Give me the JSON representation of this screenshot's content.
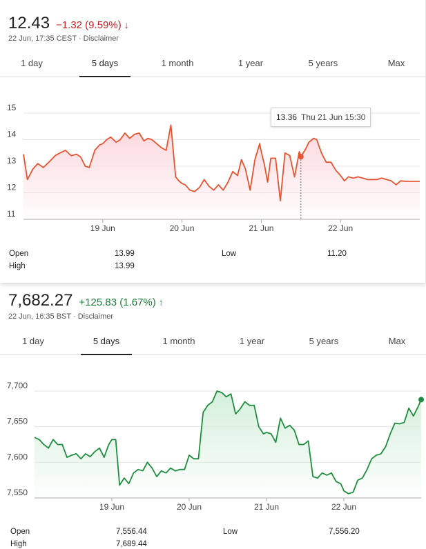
{
  "quote1": {
    "price": "12.43",
    "change": "−1.32 (9.59%)",
    "change_direction": "down",
    "timestamp": "22 Jun, 17:35 CEST · Disclaimer",
    "tabs": [
      "1 day",
      "5 days",
      "1 month",
      "1 year",
      "5 years",
      "Max"
    ],
    "active_tab": "5 days",
    "tooltip": {
      "value": "13.36",
      "time": "Thu 21 Jun 15:30"
    },
    "stats": {
      "open_label": "Open",
      "open_value": "13.99",
      "high_label": "High",
      "high_value": "13.99",
      "low_label": "Low",
      "low_value": "11.20"
    },
    "colors": {
      "line": "#e8532f",
      "fill": "#fbd7dc",
      "change": "#c5221f"
    }
  },
  "quote2": {
    "price": "7,682.27",
    "change": "+125.83 (1.67%)",
    "change_direction": "up",
    "timestamp": "22 Jun, 16:35 BST · Disclaimer",
    "tabs": [
      "1 day",
      "5 days",
      "1 month",
      "1 year",
      "5 years",
      "Max"
    ],
    "active_tab": "5 days",
    "stats": {
      "open_label": "Open",
      "open_value": "7,556.44",
      "high_label": "High",
      "high_value": "7,689.44",
      "low_label": "Low",
      "low_value": "7,556.20"
    },
    "colors": {
      "line": "#1e8e3e",
      "fill": "#d5efdc",
      "change": "#188038"
    }
  },
  "chart_data": [
    {
      "type": "line",
      "title": "",
      "x_tick_labels": [
        "19 Jun",
        "20 Jun",
        "21 Jun",
        "22 Jun"
      ],
      "y_tick_labels": [
        "11",
        "12",
        "13",
        "14",
        "15"
      ],
      "ylim": [
        11,
        15
      ],
      "xlim": [
        18.0,
        23.0
      ],
      "grid": true,
      "series": [
        {
          "x": [
            18.0,
            18.05,
            18.12,
            18.18,
            18.25,
            18.32,
            18.4,
            18.46,
            18.53,
            18.6,
            18.67,
            18.72,
            18.78,
            18.83,
            18.9,
            18.96,
            19.0,
            19.05,
            19.1,
            19.17,
            19.22,
            19.28,
            19.34,
            19.4,
            19.46,
            19.52,
            19.57,
            19.62,
            19.68,
            19.74,
            19.8,
            19.86,
            19.92,
            19.96,
            20.0,
            20.04,
            20.1,
            20.16,
            20.22,
            20.28,
            20.34,
            20.4,
            20.46,
            20.52,
            20.58,
            20.64,
            20.7,
            20.75,
            20.8,
            20.86,
            20.92,
            20.98,
            21.0,
            21.04,
            21.08,
            21.12,
            21.18,
            21.24,
            21.3,
            21.36,
            21.42,
            21.48,
            21.5,
            21.56,
            21.6,
            21.64,
            21.66,
            21.7,
            21.76,
            21.82,
            21.88,
            21.94,
            22.0,
            22.05,
            22.1,
            22.16,
            22.22,
            22.28,
            22.34,
            22.4,
            22.46,
            22.52,
            22.58,
            22.64,
            22.7,
            22.76,
            22.82,
            22.88,
            22.94,
            23.0
          ],
          "y": [
            13.45,
            12.5,
            12.9,
            13.1,
            12.95,
            13.15,
            13.4,
            13.5,
            13.6,
            13.4,
            13.45,
            13.35,
            13.0,
            12.95,
            13.6,
            13.8,
            13.85,
            14.0,
            14.1,
            13.9,
            14.0,
            14.25,
            14.05,
            14.2,
            14.25,
            13.95,
            14.05,
            14.0,
            13.85,
            13.7,
            13.6,
            14.55,
            12.6,
            12.45,
            12.35,
            12.3,
            12.1,
            12.05,
            12.2,
            12.5,
            12.25,
            12.1,
            12.3,
            12.1,
            12.4,
            12.8,
            12.65,
            13.25,
            12.9,
            12.1,
            13.25,
            13.85,
            13.55,
            13.05,
            12.4,
            13.3,
            13.3,
            11.7,
            13.5,
            13.4,
            12.6,
            13.55,
            13.36,
            13.65,
            13.9,
            14.0,
            14.05,
            14.0,
            13.5,
            13.15,
            13.15,
            12.85,
            12.65,
            12.45,
            12.6,
            12.55,
            12.6,
            12.55,
            12.5,
            12.5,
            12.5,
            12.55,
            12.5,
            12.45,
            12.3,
            12.45,
            12.43,
            12.43,
            12.43,
            12.43
          ]
        }
      ]
    },
    {
      "type": "line",
      "title": "",
      "x_tick_labels": [
        "19 Jun",
        "20 Jun",
        "21 Jun",
        "22 Jun"
      ],
      "y_tick_labels": [
        "7,700",
        "7,650",
        "7,600",
        "7,550"
      ],
      "ylim": [
        7550,
        7700
      ],
      "xlim": [
        18.0,
        23.0
      ],
      "grid": true,
      "series": [
        {
          "x": [
            18.0,
            18.06,
            18.12,
            18.18,
            18.24,
            18.3,
            18.36,
            18.42,
            18.48,
            18.54,
            18.6,
            18.66,
            18.72,
            18.78,
            18.84,
            18.9,
            18.96,
            19.0,
            19.05,
            19.1,
            19.16,
            19.22,
            19.28,
            19.34,
            19.4,
            19.46,
            19.52,
            19.58,
            19.64,
            19.7,
            19.76,
            19.82,
            19.88,
            19.94,
            20.0,
            20.06,
            20.12,
            20.18,
            20.24,
            20.3,
            20.36,
            20.42,
            20.48,
            20.54,
            20.6,
            20.66,
            20.72,
            20.78,
            20.84,
            20.9,
            20.96,
            21.0,
            21.06,
            21.12,
            21.18,
            21.24,
            21.3,
            21.36,
            21.42,
            21.48,
            21.54,
            21.6,
            21.66,
            21.72,
            21.78,
            21.84,
            21.9,
            21.96,
            22.0,
            22.06,
            22.12,
            22.18,
            22.24,
            22.3,
            22.36,
            22.42,
            22.48,
            22.54,
            22.6,
            22.66,
            22.72,
            22.78,
            22.84,
            22.9,
            22.96,
            23.0
          ],
          "y": [
            7635,
            7632,
            7625,
            7620,
            7632,
            7625,
            7625,
            7607,
            7610,
            7612,
            7605,
            7612,
            7608,
            7615,
            7620,
            7607,
            7625,
            7632,
            7632,
            7568,
            7578,
            7570,
            7585,
            7590,
            7588,
            7600,
            7592,
            7580,
            7588,
            7585,
            7592,
            7588,
            7590,
            7590,
            7610,
            7605,
            7605,
            7670,
            7680,
            7685,
            7700,
            7698,
            7692,
            7696,
            7668,
            7675,
            7685,
            7680,
            7680,
            7650,
            7640,
            7642,
            7640,
            7628,
            7662,
            7648,
            7652,
            7645,
            7625,
            7625,
            7630,
            7580,
            7578,
            7585,
            7582,
            7585,
            7573,
            7570,
            7560,
            7556,
            7558,
            7575,
            7578,
            7590,
            7605,
            7610,
            7612,
            7622,
            7640,
            7655,
            7654,
            7656,
            7676,
            7665,
            7678,
            7688
          ]
        }
      ]
    }
  ]
}
